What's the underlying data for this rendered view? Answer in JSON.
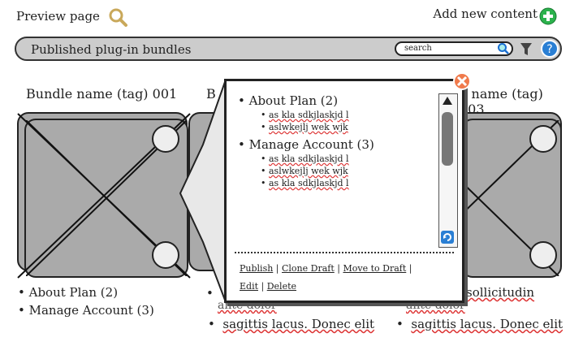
{
  "header": {
    "preview_label": "Preview page",
    "add_content_label": "Add new content"
  },
  "toolbar": {
    "title": "Published plug-in bundles",
    "search_placeholder": "search"
  },
  "bundles": [
    {
      "title": "Bundle name (tag) 001"
    },
    {
      "title": "B"
    },
    {
      "title": "e name (tag) 003"
    }
  ],
  "bundle1_list": [
    "About Plan (2)",
    "Manage Account (3)"
  ],
  "bundle2_list": [
    "sagittis lacus. Donec elit"
  ],
  "bundle3_list": [
    "sagittis lacus. Donec elit"
  ],
  "peek_text": [
    "sollicitudin",
    "ante dolor",
    "ante dolor"
  ],
  "popup": {
    "groups": [
      {
        "label": "About Plan (2)",
        "items": [
          "as kla sdkjlaskjd l",
          "aslwkejlj wek wjk"
        ]
      },
      {
        "label": "Manage Account (3)",
        "items": [
          "as kla sdkjlaskjd l",
          "aslwkejlj wek wjk",
          "as kla sdkjlaskjd l"
        ]
      }
    ],
    "actions": {
      "publish": "Publish",
      "clone": "Clone Draft",
      "move": "Move to Draft",
      "edit": "Edit",
      "delete": "Delete"
    }
  },
  "colors": {
    "bar": "#cccccc",
    "tile": "#aaaaaa",
    "close": "#f07a4b",
    "plus": "#2bb24c",
    "help": "#2a7fd4"
  },
  "icons": [
    "magnifier-icon",
    "plus-circle-icon",
    "filter-icon",
    "help-icon",
    "close-icon",
    "search-icon",
    "refresh-icon"
  ]
}
